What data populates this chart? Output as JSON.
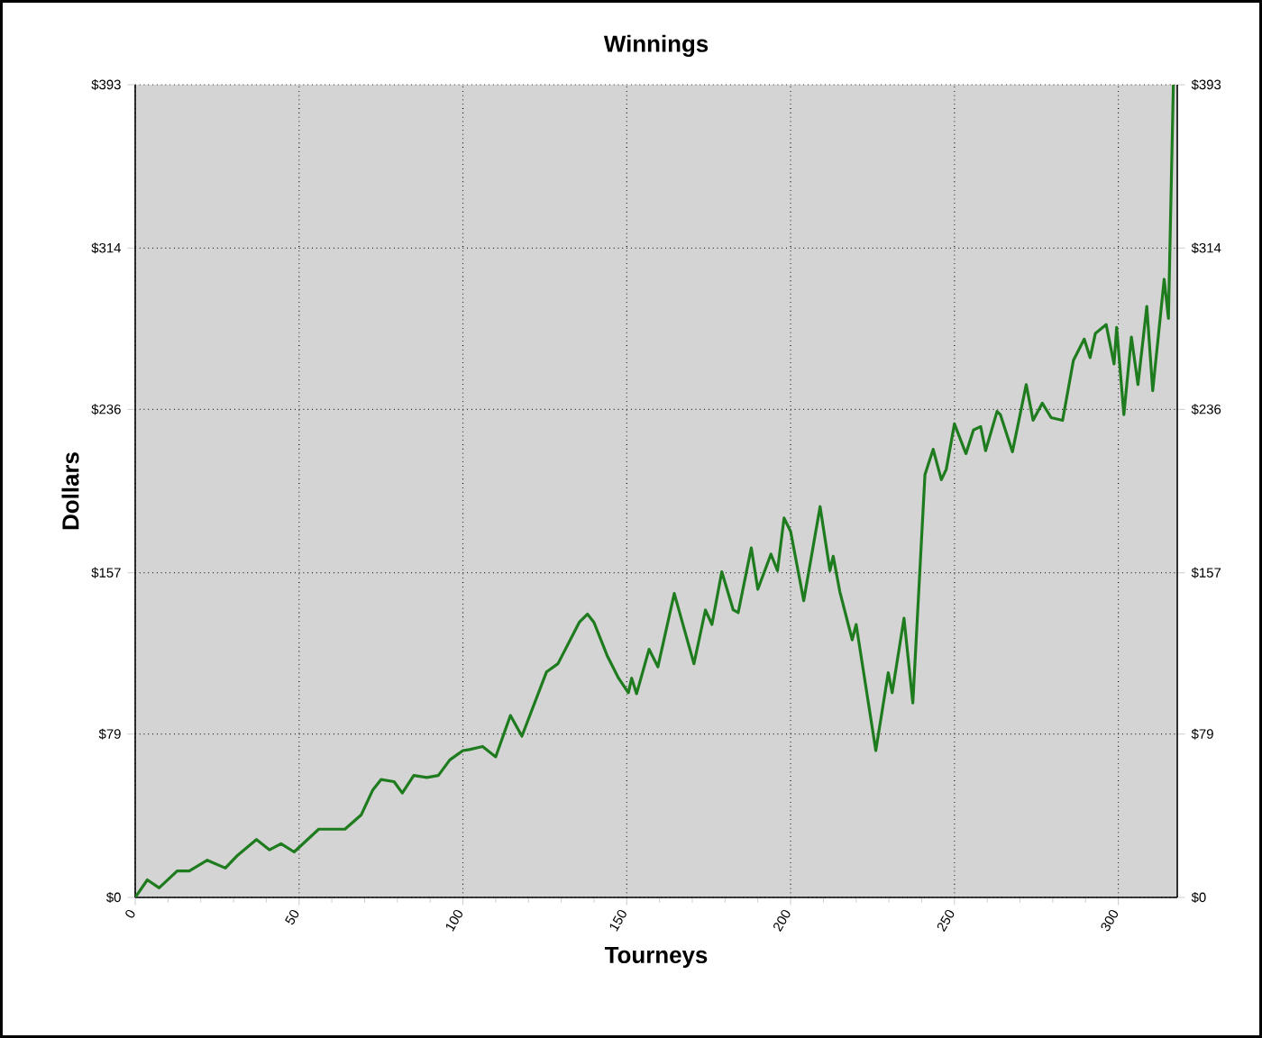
{
  "chart_data": {
    "type": "line",
    "title": "Winnings",
    "xlabel": "Tourneys",
    "ylabel": "Dollars",
    "x": [
      0,
      3.7,
      7.3,
      12.8,
      16.5,
      22,
      27.5,
      31,
      37,
      41,
      44.5,
      48.5,
      56,
      64,
      69,
      72.5,
      75,
      79,
      81.5,
      85,
      89,
      92.5,
      96,
      100,
      102,
      106,
      110,
      114.5,
      118,
      125.5,
      129,
      135.5,
      138,
      140,
      144,
      147.5,
      150.5,
      151.5,
      153,
      156.8,
      159.5,
      164.5,
      170.5,
      174,
      176,
      179,
      182.5,
      184,
      188,
      190,
      194,
      196,
      198,
      200,
      204,
      209,
      212,
      213,
      215,
      218.8,
      220,
      226,
      229.8,
      231,
      234.6,
      237.3,
      241,
      243.5,
      246,
      247.5,
      250,
      253.5,
      255.8,
      258,
      259.5,
      263,
      264,
      267.7,
      271.9,
      274,
      276.8,
      279.5,
      283,
      286.3,
      289.6,
      291.4,
      293,
      296.3,
      298.7,
      299.5,
      301.7,
      304,
      306,
      308.7,
      310.5,
      312.3,
      314,
      315.3,
      316.8
    ],
    "values": [
      0,
      8.5,
      4.6,
      12.8,
      12.8,
      18,
      14.2,
      20,
      28,
      23,
      26,
      22,
      33,
      33,
      40,
      52,
      57,
      56,
      50.5,
      59,
      58,
      59,
      66.5,
      71,
      71.5,
      73,
      68,
      88,
      78,
      109,
      113,
      133,
      137,
      133,
      117,
      106,
      99,
      106,
      98.5,
      120,
      111.5,
      147,
      113,
      139,
      132,
      157.5,
      139,
      137.7,
      169,
      149,
      166,
      158,
      183.5,
      177,
      143.5,
      189,
      158,
      165,
      148,
      124.6,
      132,
      71,
      108.7,
      99,
      135,
      94,
      204.5,
      216.7,
      202,
      207,
      229,
      214.6,
      226,
      227.7,
      216,
      235,
      233.5,
      215.5,
      248,
      230.7,
      239,
      232,
      230.7,
      259.7,
      270,
      261,
      272.7,
      277,
      258,
      275.6,
      233.5,
      271,
      248,
      285.8,
      245,
      272.7,
      298.9,
      280,
      393
    ],
    "color": "#1e7b1e",
    "line_style": "solid",
    "grid": true,
    "xlim": [
      0,
      318
    ],
    "xticks": [
      0,
      50,
      100,
      150,
      200,
      250,
      300
    ],
    "ylim": [
      0,
      393
    ],
    "yticks": [
      {
        "value": 0,
        "label": "$0"
      },
      {
        "value": 79,
        "label": "$79"
      },
      {
        "value": 157,
        "label": "$157"
      },
      {
        "value": 236,
        "label": "$236"
      },
      {
        "value": 314,
        "label": "$314"
      },
      {
        "value": 393,
        "label": "$393"
      }
    ],
    "y2lim": [
      0,
      393
    ],
    "y2ticks": [
      {
        "value": 0,
        "label": "$0"
      },
      {
        "value": 79,
        "label": "$79"
      },
      {
        "value": 157,
        "label": "$157"
      },
      {
        "value": 236,
        "label": "$236"
      },
      {
        "value": 314,
        "label": "$314"
      },
      {
        "value": 393,
        "label": "$393"
      }
    ]
  }
}
